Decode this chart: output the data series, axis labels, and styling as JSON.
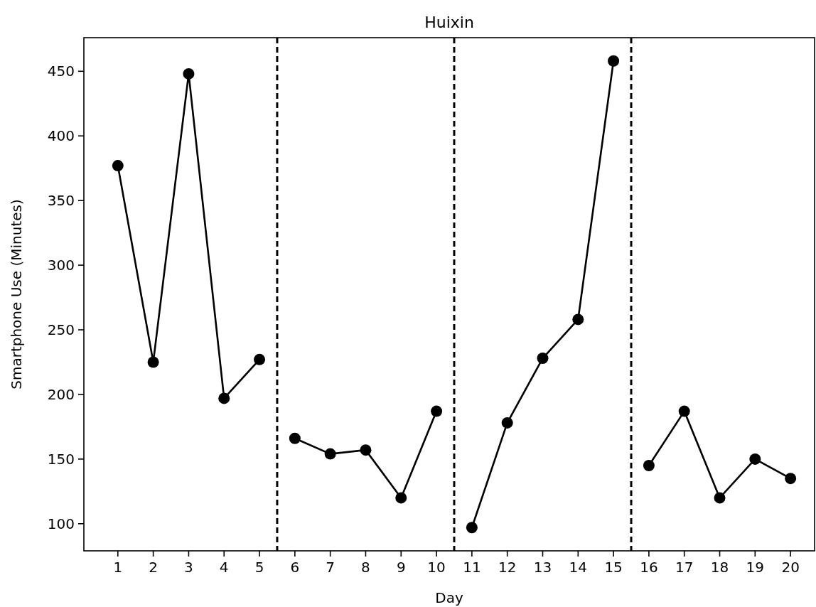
{
  "chart_data": {
    "type": "line",
    "title": "Huixin",
    "xlabel": "Day",
    "ylabel": "Smartphone Use (Minutes)",
    "xlim": [
      0.04,
      20.68
    ],
    "ylim": [
      79,
      476
    ],
    "xticks": [
      1,
      2,
      3,
      4,
      5,
      6,
      7,
      8,
      9,
      10,
      11,
      12,
      13,
      14,
      15,
      16,
      17,
      18,
      19,
      20
    ],
    "yticks": [
      100,
      150,
      200,
      250,
      300,
      350,
      400,
      450
    ],
    "marker": "circle",
    "line_style": "solid",
    "series": [
      {
        "color": "#000000",
        "x": [
          1,
          2,
          3,
          4,
          5
        ],
        "values": [
          377,
          225,
          448,
          197,
          227
        ]
      },
      {
        "color": "#000000",
        "x": [
          6,
          7,
          8,
          9,
          10
        ],
        "values": [
          166,
          154,
          157,
          120,
          187
        ]
      },
      {
        "color": "#000000",
        "x": [
          11,
          12,
          13,
          14,
          15
        ],
        "values": [
          97,
          178,
          228,
          258,
          458
        ]
      },
      {
        "color": "#000000",
        "x": [
          16,
          17,
          18,
          19,
          20
        ],
        "values": [
          145,
          187,
          120,
          150,
          135
        ]
      }
    ],
    "ref_lines": [
      {
        "axis": "x",
        "value": 5.5,
        "color": "#000000",
        "line_style": "dashed"
      },
      {
        "axis": "x",
        "value": 10.5,
        "color": "#000000",
        "line_style": "dashed"
      },
      {
        "axis": "x",
        "value": 15.5,
        "color": "#000000",
        "line_style": "dashed"
      }
    ]
  }
}
